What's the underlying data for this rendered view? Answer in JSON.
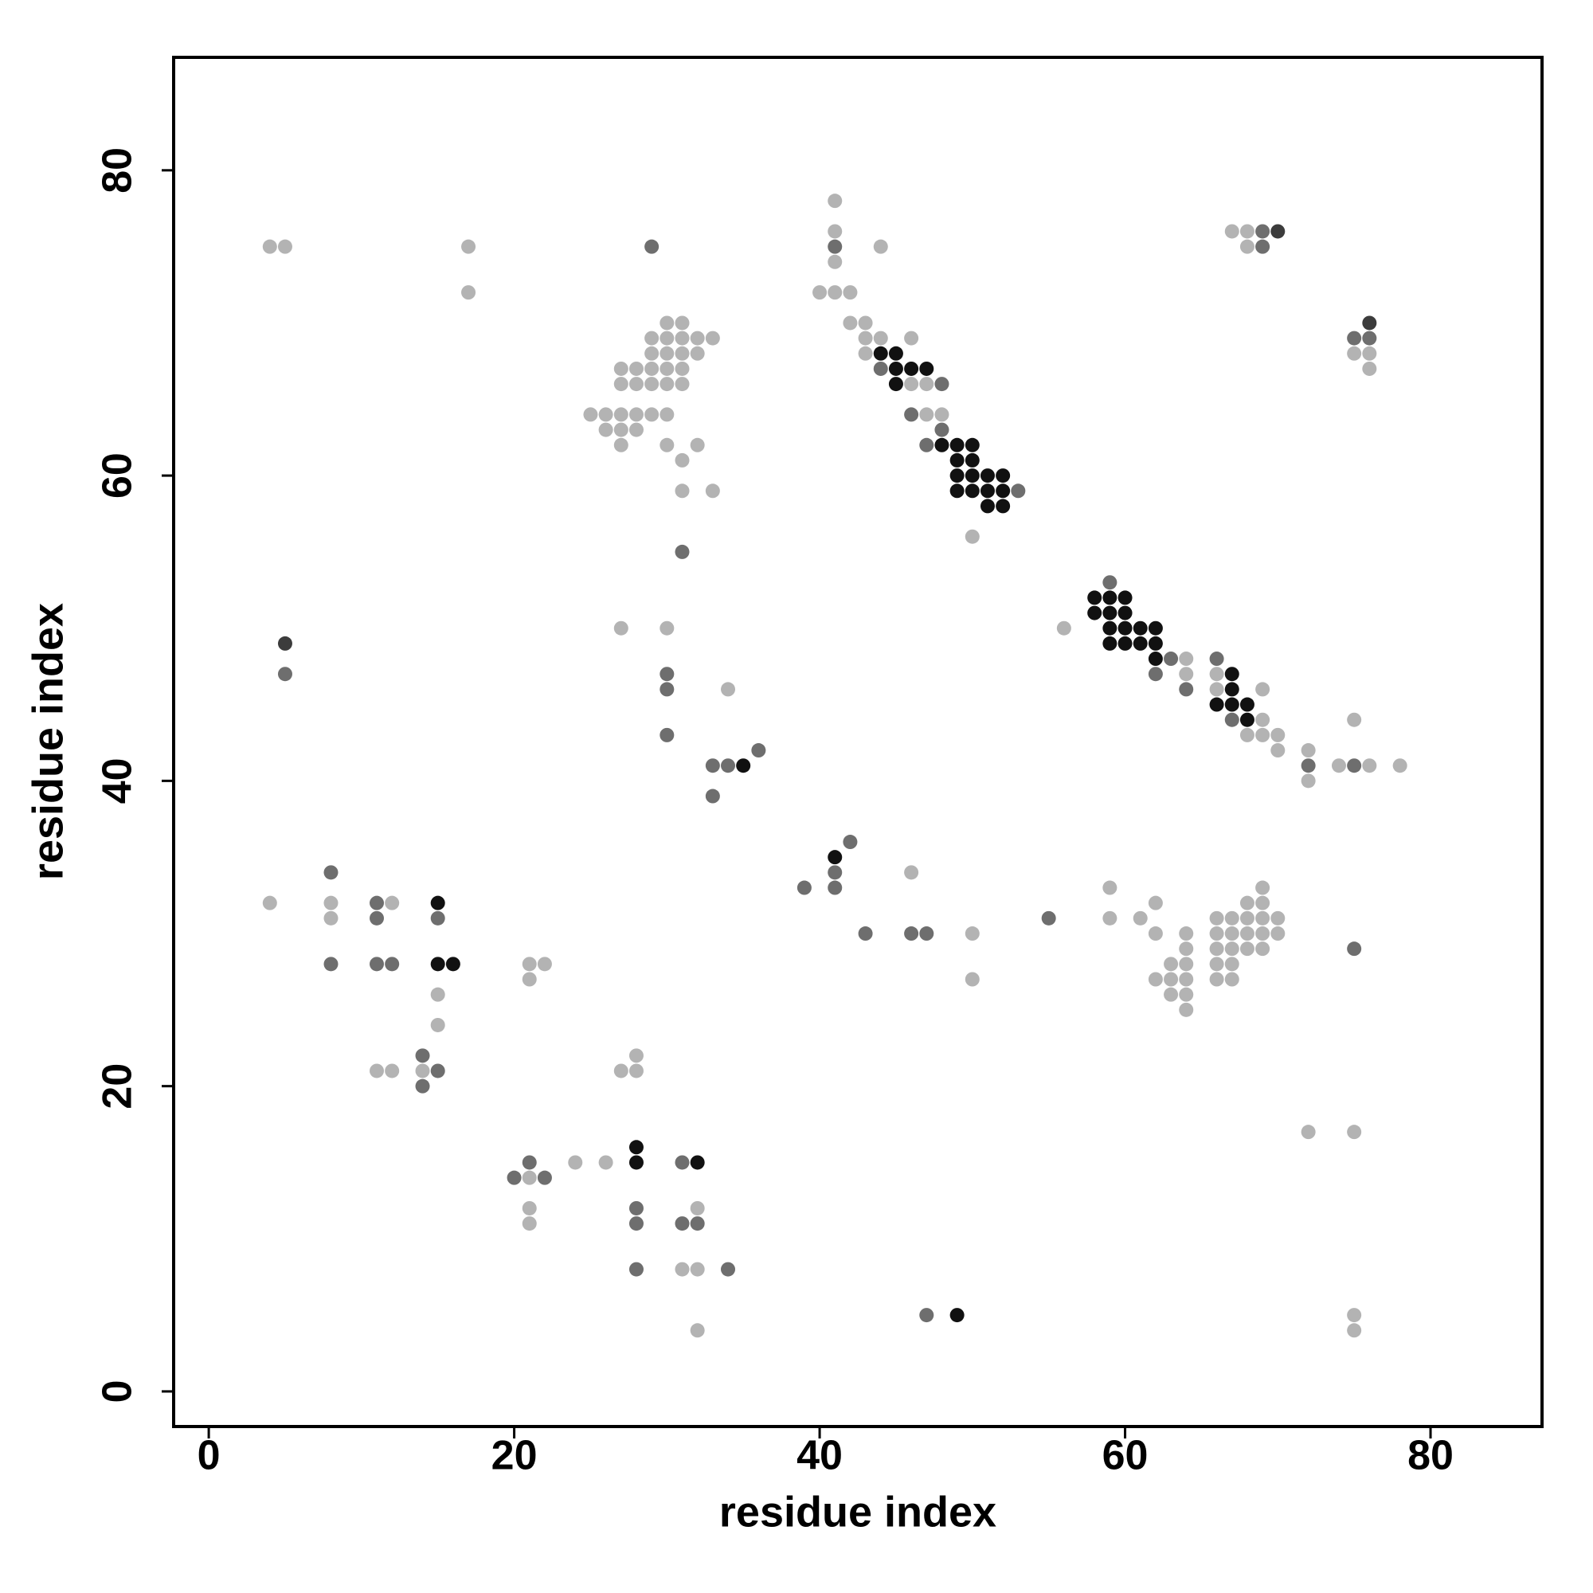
{
  "chart_data": {
    "type": "scatter",
    "xlabel": "residue index",
    "ylabel": "residue index",
    "xlim": [
      -2.3,
      87.3
    ],
    "ylim": [
      -2.3,
      87.4
    ],
    "xticks": [
      0,
      20,
      40,
      60,
      80
    ],
    "yticks": [
      0,
      20,
      40,
      60,
      80
    ],
    "series": [
      {
        "color": "#b3b3b3",
        "x": [
          4,
          5,
          17,
          17,
          4,
          8,
          8,
          12,
          15,
          15,
          14,
          11,
          12,
          21,
          22,
          21,
          21,
          21,
          21,
          24,
          26,
          27,
          28,
          28,
          32,
          31,
          32,
          32,
          75,
          72,
          75,
          75,
          30,
          31,
          29,
          30,
          31,
          32,
          33,
          29,
          30,
          31,
          32,
          27,
          28,
          29,
          30,
          31,
          27,
          28,
          29,
          30,
          31,
          25,
          26,
          27,
          28,
          29,
          30,
          26,
          27,
          28,
          27,
          30,
          32,
          31,
          31,
          33,
          27,
          30,
          34,
          41,
          41,
          44,
          41,
          40,
          41,
          42,
          42,
          43,
          43,
          44,
          46,
          43,
          46,
          47,
          47,
          48,
          50,
          56,
          64,
          64,
          66,
          66,
          69,
          69,
          75,
          68,
          69,
          70,
          70,
          72,
          74,
          76,
          78,
          72,
          67,
          68,
          68,
          75,
          76,
          76,
          46,
          50,
          50,
          59,
          59,
          61,
          62,
          62,
          64,
          64,
          63,
          64,
          62,
          63,
          64,
          63,
          64,
          64,
          66,
          67,
          68,
          69,
          70,
          68,
          69,
          69,
          66,
          67,
          68,
          69,
          70,
          66,
          67,
          68,
          69,
          66,
          67,
          66,
          67
        ],
        "y": [
          75,
          75,
          75,
          72,
          32,
          32,
          31,
          32,
          26,
          24,
          21,
          21,
          21,
          28,
          28,
          27,
          14,
          12,
          11,
          15,
          15,
          21,
          21,
          22,
          12,
          8,
          8,
          4,
          17,
          17,
          5,
          4,
          70,
          70,
          69,
          69,
          69,
          69,
          69,
          68,
          68,
          68,
          68,
          67,
          67,
          67,
          67,
          67,
          66,
          66,
          66,
          66,
          66,
          64,
          64,
          64,
          64,
          64,
          64,
          63,
          63,
          63,
          62,
          62,
          62,
          61,
          59,
          59,
          50,
          50,
          46,
          78,
          76,
          75,
          74,
          72,
          72,
          72,
          70,
          70,
          69,
          69,
          69,
          68,
          66,
          66,
          64,
          64,
          56,
          50,
          48,
          47,
          47,
          46,
          46,
          44,
          44,
          43,
          43,
          43,
          42,
          42,
          41,
          41,
          41,
          40,
          76,
          76,
          75,
          68,
          68,
          67,
          34,
          30,
          27,
          33,
          31,
          31,
          32,
          30,
          30,
          29,
          28,
          28,
          27,
          27,
          27,
          26,
          26,
          25,
          31,
          31,
          31,
          31,
          31,
          32,
          32,
          33,
          30,
          30,
          30,
          30,
          30,
          29,
          29,
          29,
          29,
          28,
          28,
          27,
          27
        ]
      },
      {
        "color": "#6e6e6e",
        "x": [
          29,
          5,
          8,
          8,
          11,
          11,
          11,
          12,
          15,
          14,
          15,
          14,
          20,
          21,
          22,
          28,
          28,
          28,
          31,
          31,
          32,
          34,
          47,
          31,
          30,
          30,
          30,
          33,
          34,
          36,
          33,
          41,
          44,
          48,
          46,
          48,
          47,
          53,
          59,
          63,
          66,
          62,
          64,
          67,
          72,
          75,
          69,
          69,
          75,
          76,
          42,
          41,
          39,
          41,
          43,
          46,
          47,
          55,
          75
        ],
        "y": [
          75,
          47,
          34,
          28,
          32,
          31,
          28,
          28,
          31,
          22,
          21,
          20,
          14,
          15,
          14,
          12,
          11,
          8,
          15,
          11,
          11,
          8,
          5,
          55,
          47,
          46,
          43,
          41,
          41,
          42,
          39,
          75,
          67,
          66,
          64,
          63,
          62,
          59,
          53,
          48,
          48,
          47,
          46,
          44,
          41,
          41,
          76,
          75,
          69,
          69,
          36,
          34,
          33,
          33,
          30,
          30,
          30,
          31,
          29
        ]
      },
      {
        "color": "#3c3c3c",
        "x": [
          5,
          70,
          76
        ],
        "y": [
          49,
          76,
          70
        ]
      },
      {
        "color": "#111111",
        "x": [
          15,
          15,
          16,
          28,
          28,
          32,
          49,
          35,
          44,
          45,
          45,
          46,
          47,
          45,
          48,
          49,
          50,
          49,
          50,
          49,
          50,
          51,
          52,
          49,
          50,
          51,
          52,
          51,
          52,
          58,
          59,
          60,
          58,
          59,
          60,
          59,
          60,
          61,
          62,
          59,
          60,
          61,
          62,
          62,
          67,
          67,
          66,
          67,
          68,
          68,
          41
        ],
        "y": [
          32,
          28,
          28,
          16,
          15,
          15,
          5,
          41,
          68,
          68,
          67,
          67,
          67,
          66,
          62,
          62,
          62,
          61,
          61,
          60,
          60,
          60,
          60,
          59,
          59,
          59,
          59,
          58,
          58,
          52,
          52,
          52,
          51,
          51,
          51,
          50,
          50,
          50,
          50,
          49,
          49,
          49,
          49,
          48,
          47,
          46,
          45,
          45,
          45,
          44,
          35
        ]
      }
    ]
  }
}
